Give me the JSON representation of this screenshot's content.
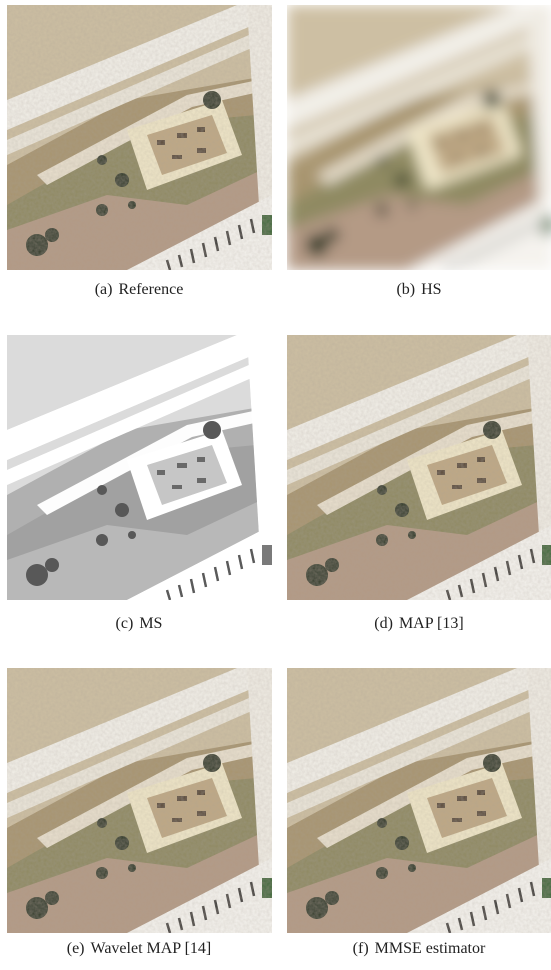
{
  "figure": {
    "panels": [
      {
        "label": "(a)",
        "caption": "Reference"
      },
      {
        "label": "(b)",
        "caption": "HS"
      },
      {
        "label": "(c)",
        "caption": "MS"
      },
      {
        "label": "(d)",
        "caption": "MAP [13]"
      },
      {
        "label": "(e)",
        "caption": "Wavelet MAP [14]"
      },
      {
        "label": "(f)",
        "caption": "MMSE estimator"
      }
    ]
  }
}
